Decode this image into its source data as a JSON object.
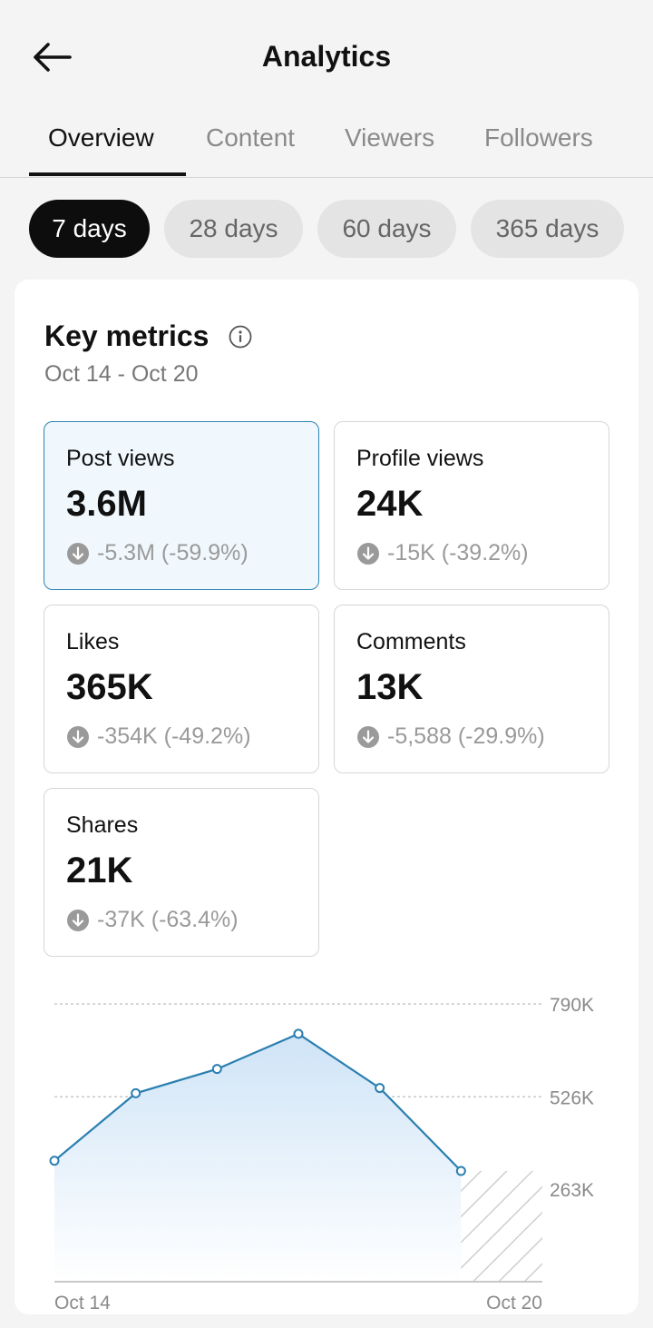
{
  "header": {
    "title": "Analytics"
  },
  "tabs": [
    {
      "label": "Overview"
    },
    {
      "label": "Content"
    },
    {
      "label": "Viewers"
    },
    {
      "label": "Followers"
    }
  ],
  "ranges": [
    {
      "label": "7 days"
    },
    {
      "label": "28 days"
    },
    {
      "label": "60 days"
    },
    {
      "label": "365 days"
    }
  ],
  "key_metrics": {
    "title": "Key metrics",
    "date_range": "Oct 14 - Oct 20",
    "items": [
      {
        "label": "Post views",
        "value": "3.6M",
        "change": "-5.3M (-59.9%)"
      },
      {
        "label": "Profile views",
        "value": "24K",
        "change": "-15K (-39.2%)"
      },
      {
        "label": "Likes",
        "value": "365K",
        "change": "-354K (-49.2%)"
      },
      {
        "label": "Comments",
        "value": "13K",
        "change": "-5,588 (-29.9%)"
      },
      {
        "label": "Shares",
        "value": "21K",
        "change": "-37K (-63.4%)"
      }
    ]
  },
  "colors": {
    "accent_line": "#2a7fb0",
    "fill_top": "#cfe4f7",
    "selected_border": "#2c83b4"
  },
  "chart_data": {
    "type": "area",
    "x": [
      "Oct 14",
      "Oct 15",
      "Oct 16",
      "Oct 17",
      "Oct 18",
      "Oct 19",
      "Oct 20"
    ],
    "values": [
      344000,
      536000,
      605000,
      705000,
      551000,
      315000,
      null
    ],
    "ylim": [
      0,
      790000
    ],
    "ytick_labels": [
      "790K",
      "526K",
      "263K"
    ],
    "ytick_values": [
      790000,
      526000,
      263000
    ],
    "xtick_labels": [
      "Oct 14",
      "Oct 20"
    ],
    "grid": "dashed horizontal",
    "incomplete_last_period": true
  }
}
